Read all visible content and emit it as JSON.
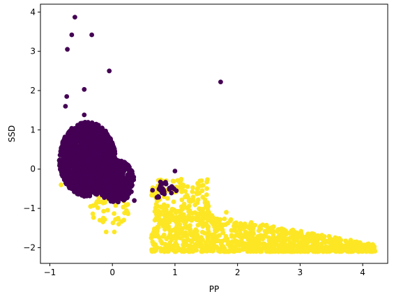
{
  "chart_data": {
    "type": "scatter",
    "title": "",
    "xlabel": "PP",
    "ylabel": "SSD",
    "xlim": [
      -1.15,
      4.4
    ],
    "ylim": [
      -2.4,
      4.2
    ],
    "xticks": [
      -1,
      0,
      1,
      2,
      3,
      4
    ],
    "yticks": [
      -2,
      -1,
      0,
      1,
      2,
      3,
      4
    ],
    "grid": false,
    "legend": "none",
    "colors": {
      "class_0": "#440154",
      "class_1": "#fde725"
    },
    "clusters": [
      {
        "class": "class_1",
        "shape": "rect",
        "x": [
          0.62,
          4.2
        ],
        "y": [
          -2.1,
          -0.9
        ],
        "n": 1100,
        "taper": 1
      },
      {
        "class": "class_1",
        "shape": "rect",
        "x": [
          0.62,
          1.55
        ],
        "y": [
          -1.3,
          -0.25
        ],
        "n": 180,
        "taper": 0
      },
      {
        "class": "class_1",
        "shape": "ellipse",
        "cx": -0.05,
        "cy": -1.0,
        "rx": 0.32,
        "ry": 0.45,
        "n": 40
      },
      {
        "class": "class_0",
        "shape": "ellipse",
        "cx": -0.4,
        "cy": 0.25,
        "rx": 0.45,
        "ry": 0.95,
        "n": 1600
      },
      {
        "class": "class_0",
        "shape": "ellipse",
        "cx": 0.05,
        "cy": -0.3,
        "rx": 0.3,
        "ry": 0.55,
        "n": 350
      },
      {
        "class": "class_0",
        "shape": "ellipse",
        "cx": 0.85,
        "cy": -0.55,
        "rx": 0.22,
        "ry": 0.25,
        "n": 25
      }
    ],
    "points": [
      {
        "class": "class_0",
        "x": -0.6,
        "y": 3.87
      },
      {
        "class": "class_0",
        "x": -0.65,
        "y": 3.42
      },
      {
        "class": "class_0",
        "x": -0.33,
        "y": 3.42
      },
      {
        "class": "class_0",
        "x": -0.72,
        "y": 3.05
      },
      {
        "class": "class_0",
        "x": -0.05,
        "y": 2.5
      },
      {
        "class": "class_0",
        "x": 1.73,
        "y": 2.22
      },
      {
        "class": "class_0",
        "x": -0.45,
        "y": 2.03
      },
      {
        "class": "class_0",
        "x": -0.73,
        "y": 1.85
      },
      {
        "class": "class_0",
        "x": -0.75,
        "y": 1.6
      },
      {
        "class": "class_0",
        "x": -0.45,
        "y": 1.38
      },
      {
        "class": "class_0",
        "x": 1.0,
        "y": -0.05
      },
      {
        "class": "class_0",
        "x": 0.35,
        "y": -0.8
      },
      {
        "class": "class_1",
        "x": -0.82,
        "y": -0.4
      },
      {
        "class": "class_1",
        "x": -0.35,
        "y": -0.95
      },
      {
        "class": "class_1",
        "x": -0.2,
        "y": -1.3
      },
      {
        "class": "class_1",
        "x": -0.1,
        "y": -1.6
      },
      {
        "class": "class_1",
        "x": 0.03,
        "y": -1.6
      },
      {
        "class": "class_1",
        "x": -0.12,
        "y": -0.85
      },
      {
        "class": "class_1",
        "x": 0.1,
        "y": -1.4
      },
      {
        "class": "class_1",
        "x": 1.4,
        "y": -0.3
      },
      {
        "class": "class_1",
        "x": 1.82,
        "y": -1.1
      },
      {
        "class": "class_1",
        "x": 2.2,
        "y": -1.45
      },
      {
        "class": "class_1",
        "x": 2.75,
        "y": -1.62
      },
      {
        "class": "class_1",
        "x": 2.9,
        "y": -1.6
      },
      {
        "class": "class_1",
        "x": 3.25,
        "y": -1.8
      }
    ]
  }
}
